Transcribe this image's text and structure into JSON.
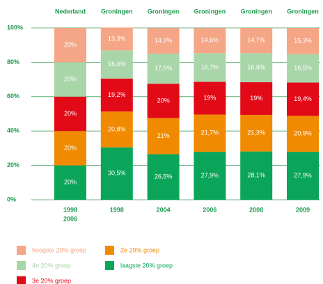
{
  "chart_data": {
    "type": "stacked-bar",
    "groups": [
      "Nederland",
      "Groningen",
      "Groningen",
      "Groningen",
      "Groningen",
      "Groningen"
    ],
    "categories": [
      [
        "1998",
        "2006"
      ],
      [
        "1998"
      ],
      [
        "2004"
      ],
      [
        "2006"
      ],
      [
        "2008"
      ],
      [
        "2009"
      ]
    ],
    "ylim": [
      0,
      100
    ],
    "yticks": [
      {
        "value": 0,
        "label": "0%"
      },
      {
        "value": 20,
        "label": "20%"
      },
      {
        "value": 40,
        "label": "40%"
      },
      {
        "value": 60,
        "label": "60%"
      },
      {
        "value": 80,
        "label": "80%"
      },
      {
        "value": 100,
        "label": "100%"
      }
    ],
    "grid": true,
    "series": [
      {
        "name": "laagste 20% groep",
        "color": "#0ba55a",
        "values": [
          20,
          30.5,
          26.5,
          27.9,
          28.1,
          27.9
        ],
        "value_labels": [
          "20%",
          "30,5%",
          "26,5%",
          "27,9%",
          "28,1%",
          "27,9%"
        ]
      },
      {
        "name": "2e 20% groep",
        "color": "#f08a00",
        "values": [
          20,
          20.8,
          21,
          21.7,
          21.3,
          20.9
        ],
        "value_labels": [
          "20%",
          "20,8%",
          "21%",
          "21,7%",
          "21,3%",
          "20,9%"
        ]
      },
      {
        "name": "3e 20% groep",
        "color": "#e30a18",
        "values": [
          20,
          19.2,
          20,
          19,
          19,
          19.4
        ],
        "value_labels": [
          "20%",
          "19,2%",
          "20%",
          "19%",
          "19%",
          "19,4%"
        ]
      },
      {
        "name": "4e 20% groep",
        "color": "#a9d6a9",
        "values": [
          20,
          16.4,
          17.5,
          16.7,
          16.9,
          16.5
        ],
        "value_labels": [
          "20%",
          "16,4%",
          "17,5%",
          "16,7%",
          "16,9%",
          "16,5%"
        ]
      },
      {
        "name": "hoogste 20% groep",
        "color": "#f5a686",
        "values": [
          20,
          13.3,
          14.9,
          14.6,
          14.7,
          15.3
        ],
        "value_labels": [
          "20%",
          "13,3%",
          "14,9%",
          "14,6%",
          "14,7%",
          "15,3%"
        ]
      }
    ]
  }
}
